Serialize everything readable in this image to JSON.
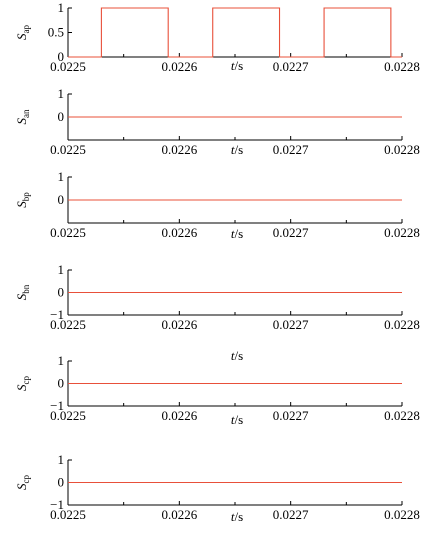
{
  "chart_data": [
    {
      "type": "line",
      "ylabel": "Sap",
      "ylabel_main": "S",
      "ylabel_sub": "ap",
      "xlabel_var": "t",
      "xlabel_unit": "/s",
      "xlim": [
        0.0225,
        0.0228
      ],
      "ylim": [
        0,
        1
      ],
      "xticks": [
        "0.0225",
        "0.0226",
        "0.0227",
        "0.0228"
      ],
      "yticks": [
        "0",
        "0.5",
        "1"
      ],
      "color": "#e8503a",
      "series": [
        {
          "x": [
            0.0225,
            0.02253,
            0.02253,
            0.02259,
            0.02259,
            0.02263,
            0.02263,
            0.02269,
            0.02269,
            0.02273,
            0.02273,
            0.02279,
            0.02279,
            0.0228
          ],
          "y": [
            0,
            0,
            1,
            1,
            0,
            0,
            1,
            1,
            0,
            0,
            1,
            1,
            0,
            0
          ]
        }
      ]
    },
    {
      "type": "line",
      "ylabel": "San",
      "ylabel_main": "S",
      "ylabel_sub": "an",
      "xlabel_var": "t",
      "xlabel_unit": "/s",
      "xlim": [
        0.0225,
        0.0228
      ],
      "ylim": [
        -1,
        1
      ],
      "xticks": [
        "0.0225",
        "0.0226",
        "0.0227",
        "0.0228"
      ],
      "yticks": [
        "0",
        "1"
      ],
      "color": "#e8503a",
      "series": [
        {
          "x": [
            0.0225,
            0.0228
          ],
          "y": [
            0,
            0
          ]
        }
      ]
    },
    {
      "type": "line",
      "ylabel": "Sbp",
      "ylabel_main": "S",
      "ylabel_sub": "bp",
      "xlabel_var": "t",
      "xlabel_unit": "/s",
      "xlim": [
        0.0225,
        0.0228
      ],
      "ylim": [
        -1,
        1
      ],
      "xticks": [
        "0.0225",
        "0.0226",
        "0.0227",
        "0.0228"
      ],
      "yticks": [
        "0",
        "1"
      ],
      "color": "#e8503a",
      "series": [
        {
          "x": [
            0.0225,
            0.0228
          ],
          "y": [
            0,
            0
          ]
        }
      ]
    },
    {
      "type": "line",
      "ylabel": "Sbn",
      "ylabel_main": "S",
      "ylabel_sub": "bn",
      "xlabel_var": "t",
      "xlabel_unit": "/s",
      "xlim": [
        0.0225,
        0.0228
      ],
      "ylim": [
        -1,
        1
      ],
      "xticks": [
        "0.0225",
        "0.0226",
        "0.0227",
        "0.0228"
      ],
      "yticks": [
        "−1",
        "0",
        "1"
      ],
      "color": "#e8503a",
      "series": [
        {
          "x": [
            0.0225,
            0.0228
          ],
          "y": [
            0,
            0
          ]
        }
      ]
    },
    {
      "type": "line",
      "ylabel": "Scp",
      "ylabel_main": "S",
      "ylabel_sub": "cp",
      "xlabel_var": "t",
      "xlabel_unit": "/s",
      "xlim": [
        0.0225,
        0.0228
      ],
      "ylim": [
        -1,
        1
      ],
      "xticks": [
        "0.0225",
        "0.0226",
        "0.0227",
        "0.0228"
      ],
      "yticks": [
        "−1",
        "0",
        "1"
      ],
      "color": "#e8503a",
      "series": [
        {
          "x": [
            0.0225,
            0.0228
          ],
          "y": [
            0,
            0
          ]
        }
      ]
    },
    {
      "type": "line",
      "ylabel": "Scp",
      "ylabel_main": "S",
      "ylabel_sub": "cp",
      "xlabel_var": "t",
      "xlabel_unit": "/s",
      "xlim": [
        0.0225,
        0.0228
      ],
      "ylim": [
        -1,
        1
      ],
      "xticks": [
        "0.0225",
        "0.0226",
        "0.0227",
        "0.0228"
      ],
      "yticks": [
        "−1",
        "0",
        "1"
      ],
      "color": "#e8503a",
      "series": [
        {
          "x": [
            0.0225,
            0.0228
          ],
          "y": [
            0,
            0
          ]
        }
      ]
    }
  ]
}
